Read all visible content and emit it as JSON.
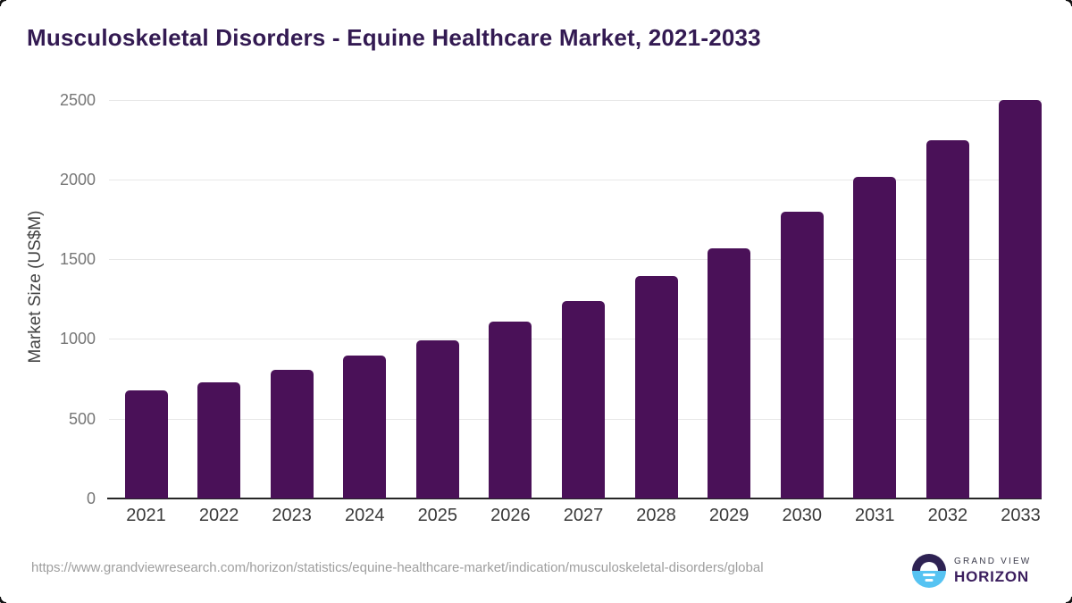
{
  "title": "Musculoskeletal Disorders - Equine Healthcare Market, 2021-2033",
  "chart_data": {
    "type": "bar",
    "categories": [
      "2021",
      "2022",
      "2023",
      "2024",
      "2025",
      "2026",
      "2027",
      "2028",
      "2029",
      "2030",
      "2031",
      "2032",
      "2033"
    ],
    "values": [
      675,
      730,
      805,
      895,
      990,
      1110,
      1240,
      1395,
      1570,
      1795,
      2015,
      2245,
      2495
    ],
    "title": "Musculoskeletal Disorders - Equine Healthcare Market, 2021-2033",
    "xlabel": "",
    "ylabel": "Market Size (US$M)",
    "ylim": [
      0,
      2500
    ],
    "yticks": [
      0,
      500,
      1000,
      1500,
      2000,
      2500
    ],
    "grid": true,
    "legend": "none",
    "bar_color": "#4a1158"
  },
  "footer": {
    "source_url": "https://www.grandviewresearch.com/horizon/statistics/equine-healthcare-market/indication/musculoskeletal-disorders/global",
    "logo": {
      "line1": "GRAND VIEW",
      "line2": "HORIZON",
      "mark": "horizon-sun-circle"
    }
  },
  "colors": {
    "title": "#331a52",
    "bar": "#4a1158",
    "gridline": "#e8e8e8",
    "baseline": "#262626",
    "ytick_text": "#767676",
    "xtick_text": "#3a3a3a",
    "axis_title_text": "#424242",
    "url_text": "#9e9e9e",
    "logo_blue": "#56c3f2",
    "logo_navy": "#2e2253",
    "logo_purple": "#3b1e5e"
  }
}
